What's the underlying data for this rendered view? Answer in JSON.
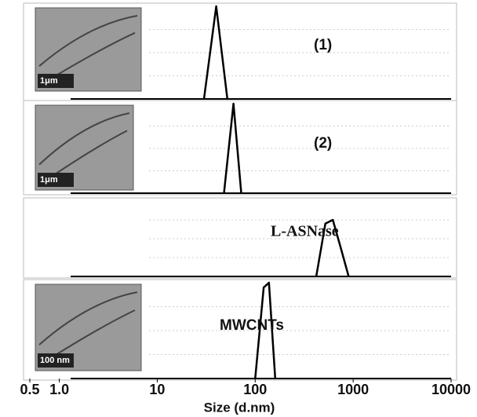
{
  "chart_data": {
    "type": "line",
    "xlabel": "Size (d.nm)",
    "xscale": "log",
    "xlim": [
      0.5,
      10000
    ],
    "xticks": [
      0.5,
      {
        "value": 1,
        "label": "1.0"
      },
      10,
      100,
      1000,
      10000
    ],
    "ylim": [
      0,
      100
    ],
    "series": [
      {
        "name": "(1)",
        "color": "#000000",
        "scale_bar": "1μm",
        "x": [
          30,
          40,
          52
        ],
        "values": [
          0,
          100,
          0
        ]
      },
      {
        "name": "(2)",
        "color": "#000000",
        "scale_bar": "1μm",
        "x": [
          48,
          60,
          72
        ],
        "values": [
          0,
          100,
          0
        ]
      },
      {
        "name": "L-ASNase",
        "color": "#000000",
        "x": [
          420,
          520,
          620,
          740,
          900
        ],
        "values": [
          0,
          70,
          75,
          40,
          0
        ]
      },
      {
        "name": "MWCNTs",
        "color": "#000000",
        "scale_bar": "100 nm",
        "x": [
          100,
          122,
          138,
          160
        ],
        "values": [
          0,
          95,
          100,
          0
        ]
      }
    ]
  }
}
